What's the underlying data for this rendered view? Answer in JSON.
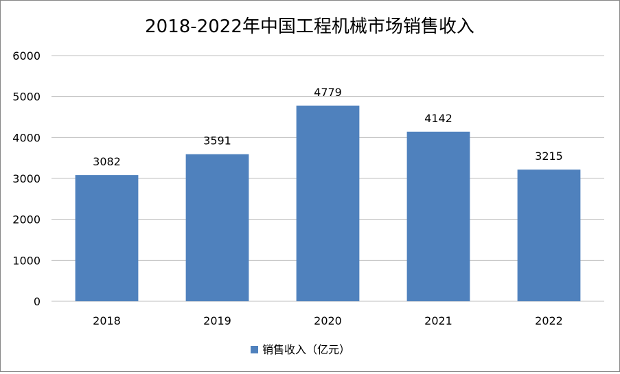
{
  "chart_data": {
    "type": "bar",
    "title": "2018-2022年中国工程机械市场销售收入",
    "xlabel": "",
    "ylabel": "",
    "categories": [
      "2018",
      "2019",
      "2020",
      "2021",
      "2022"
    ],
    "series": [
      {
        "name": "销售收入（亿元）",
        "values": [
          3082,
          3591,
          4779,
          4142,
          3215
        ],
        "color": "#4f81bd"
      }
    ],
    "ylim": [
      0,
      6000
    ],
    "yticks": [
      0,
      1000,
      2000,
      3000,
      4000,
      5000,
      6000
    ],
    "grid": true,
    "legend": "bottom",
    "data_labels": true
  }
}
